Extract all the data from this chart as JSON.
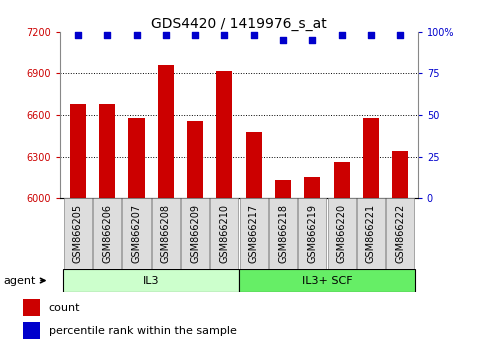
{
  "title": "GDS4420 / 1419976_s_at",
  "categories": [
    "GSM866205",
    "GSM866206",
    "GSM866207",
    "GSM866208",
    "GSM866209",
    "GSM866210",
    "GSM866217",
    "GSM866218",
    "GSM866219",
    "GSM866220",
    "GSM866221",
    "GSM866222"
  ],
  "bar_values": [
    6680,
    6680,
    6580,
    6960,
    6560,
    6920,
    6480,
    6130,
    6150,
    6260,
    6580,
    6340
  ],
  "bar_color": "#cc0000",
  "percentile_values": [
    98,
    98,
    98,
    98,
    98,
    98,
    98,
    95,
    95,
    98,
    98,
    98
  ],
  "percentile_color": "#0000cc",
  "ylim_left": [
    6000,
    7200
  ],
  "ylim_right": [
    0,
    100
  ],
  "yticks_left": [
    6000,
    6300,
    6600,
    6900,
    7200
  ],
  "yticks_right": [
    0,
    25,
    50,
    75,
    100
  ],
  "group_labels": [
    "IL3",
    "IL3+ SCF"
  ],
  "group_ranges": [
    [
      0,
      6
    ],
    [
      6,
      12
    ]
  ],
  "group_colors": [
    "#ccffcc",
    "#66ee66"
  ],
  "agent_label": "agent",
  "legend_count_label": "count",
  "legend_percentile_label": "percentile rank within the sample",
  "bar_width": 0.55,
  "title_fontsize": 10,
  "tick_fontsize": 7,
  "label_fontsize": 8,
  "grid_color": "#000000",
  "background_color": "#ffffff",
  "plot_bg_color": "#ffffff",
  "tick_label_color_left": "#cc0000",
  "tick_label_color_right": "#0000cc",
  "n_il3": 6,
  "n_total": 12
}
